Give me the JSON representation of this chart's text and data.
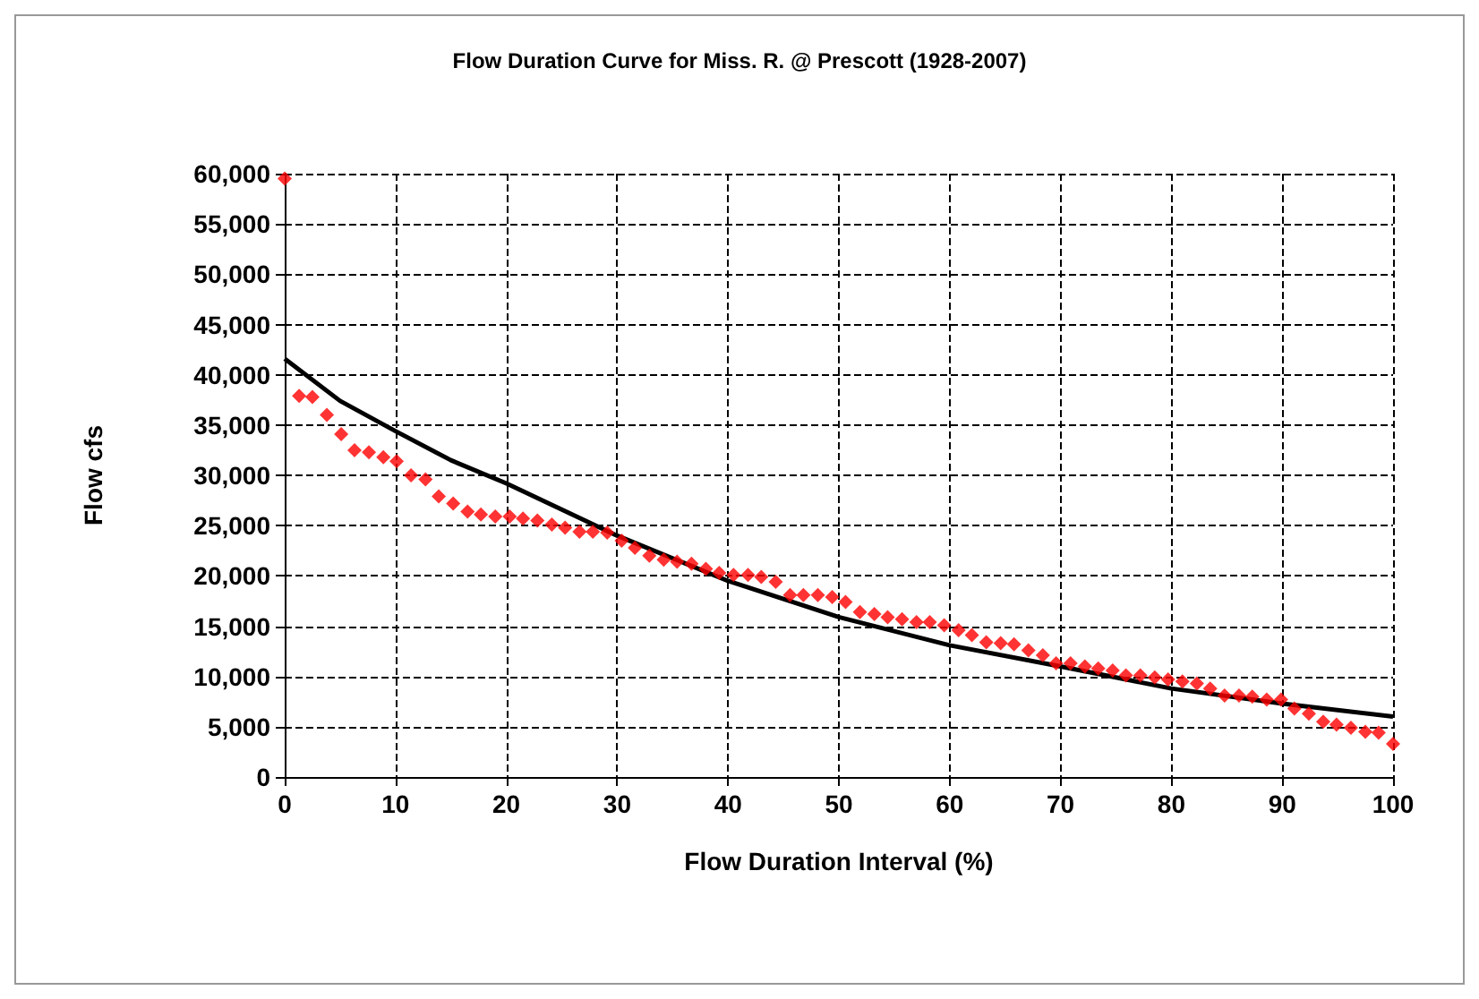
{
  "chart_data": {
    "type": "scatter",
    "title": "Flow Duration Curve for Miss. R. @ Prescott (1928-2007)",
    "xlabel": "Flow Duration Interval (%)",
    "ylabel": "Flow cfs",
    "xlim": [
      0,
      100
    ],
    "xticks": [
      0,
      10,
      20,
      30,
      40,
      50,
      60,
      70,
      80,
      90,
      100
    ],
    "ylim": [
      0,
      60000
    ],
    "yticks": [
      0,
      {
        "value": 5000,
        "label": "5,000"
      },
      {
        "value": 10000,
        "label": "10,000"
      },
      {
        "value": 15000,
        "label": "15,000"
      },
      {
        "value": 20000,
        "label": "20,000"
      },
      {
        "value": 25000,
        "label": "25,000"
      },
      {
        "value": 30000,
        "label": "30,000"
      },
      {
        "value": 35000,
        "label": "35,000"
      },
      {
        "value": 40000,
        "label": "40,000"
      },
      {
        "value": 45000,
        "label": "45,000"
      },
      {
        "value": 50000,
        "label": "50,000"
      },
      {
        "value": 55000,
        "label": "55,000"
      },
      {
        "value": 60000,
        "label": "60,000"
      }
    ],
    "grid": true,
    "series": [
      {
        "marker": "diamond",
        "color": "#ff0000",
        "x": [
          0,
          1.3,
          2.5,
          3.8,
          5.1,
          6.3,
          7.6,
          8.9,
          10.1,
          11.4,
          12.7,
          13.9,
          15.2,
          16.5,
          17.7,
          19.0,
          20.3,
          21.5,
          22.8,
          24.1,
          25.3,
          26.6,
          27.8,
          29.1,
          30.4,
          31.6,
          32.9,
          34.2,
          35.4,
          36.7,
          38.0,
          39.2,
          40.5,
          41.8,
          43.0,
          44.3,
          45.6,
          46.8,
          48.1,
          49.4,
          50.6,
          51.9,
          53.2,
          54.4,
          55.7,
          57.0,
          58.2,
          59.5,
          60.8,
          62.0,
          63.3,
          64.6,
          65.8,
          67.1,
          68.4,
          69.6,
          70.9,
          72.2,
          73.4,
          74.7,
          75.9,
          77.2,
          78.5,
          79.7,
          81.0,
          82.3,
          83.5,
          84.8,
          86.1,
          87.3,
          88.6,
          89.9,
          91.1,
          92.4,
          93.7,
          94.9,
          96.2,
          97.5,
          98.7,
          100
        ],
        "values": [
          59500,
          37900,
          37800,
          36000,
          34100,
          32500,
          32300,
          31800,
          31400,
          30000,
          29600,
          27900,
          27200,
          26400,
          26100,
          25900,
          25900,
          25700,
          25500,
          25100,
          24800,
          24400,
          24400,
          24300,
          23500,
          22800,
          22000,
          21600,
          21400,
          21200,
          20700,
          20300,
          20100,
          20100,
          19900,
          19400,
          18100,
          18100,
          18100,
          17900,
          17400,
          16400,
          16200,
          15900,
          15700,
          15400,
          15400,
          15100,
          14600,
          14100,
          13400,
          13300,
          13200,
          12600,
          12100,
          11300,
          11300,
          11000,
          10800,
          10600,
          10100,
          10100,
          9900,
          9700,
          9500,
          9300,
          8800,
          8100,
          8100,
          8000,
          7700,
          7700,
          6800,
          6300,
          5500,
          5200,
          4900,
          4500,
          4400,
          3300
        ]
      },
      {
        "type": "line",
        "marker": "none",
        "line_style": "solid",
        "color": "#000000",
        "x": [
          0,
          5,
          10,
          15,
          20,
          30,
          40,
          50,
          60,
          70,
          80,
          90,
          100
        ],
        "values": [
          41600,
          37400,
          34400,
          31500,
          29200,
          24000,
          19500,
          15900,
          13100,
          11000,
          8800,
          7300,
          6000
        ]
      }
    ]
  }
}
